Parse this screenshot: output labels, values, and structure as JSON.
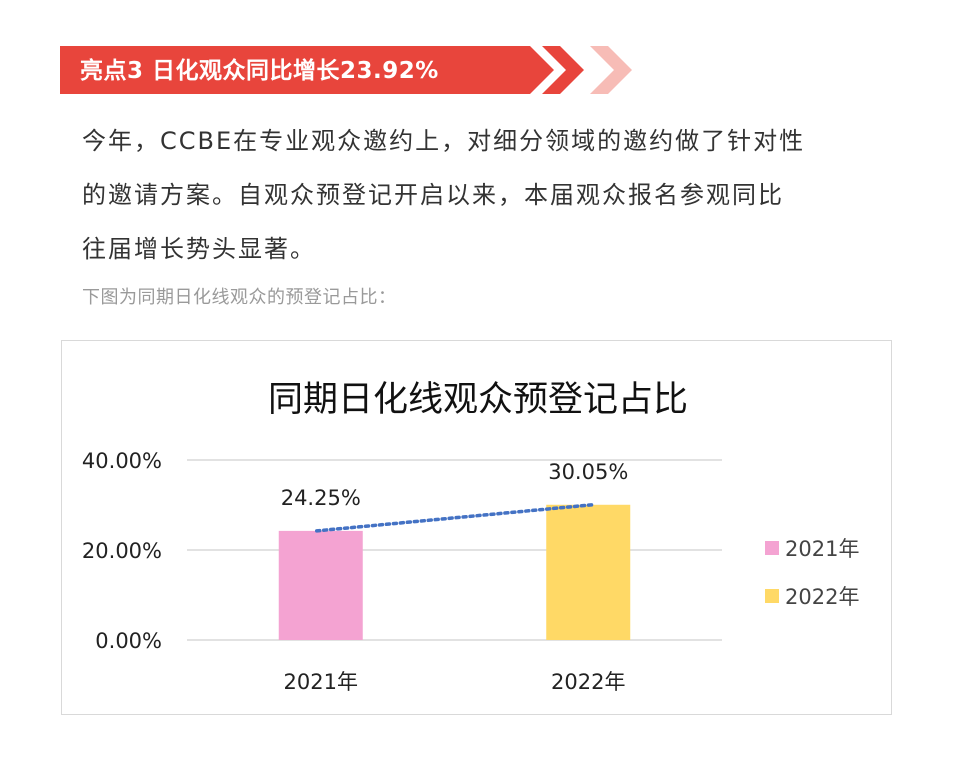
{
  "header": {
    "title": "亮点3 日化观众同比增长23.92%",
    "color": "#e8453c",
    "chevron_color": "#f7bcb6"
  },
  "body": {
    "lines": [
      "今年，CCBE在专业观众邀约上，对细分领域的邀约做了针对性",
      "的邀请方案。自观众预登记开启以来，本届观众报名参观同比",
      "往届增长势头显著。"
    ],
    "caption": "下图为同期日化线观众的预登记占比："
  },
  "chart_data": {
    "type": "bar",
    "title": "同期日化线观众预登记占比",
    "categories": [
      "2021年",
      "2022年"
    ],
    "values": [
      24.25,
      30.05
    ],
    "value_labels": [
      "24.25%",
      "30.05%"
    ],
    "colors": [
      "#f4a3d2",
      "#ffd966"
    ],
    "legend": [
      "2021年",
      "2022年"
    ],
    "legend_position": "right",
    "y_ticks": [
      "0.00%",
      "20.00%",
      "40.00%"
    ],
    "ylim": [
      0,
      40
    ],
    "grid": true,
    "trendline": {
      "style": "dotted",
      "color": "#4472c4"
    }
  }
}
